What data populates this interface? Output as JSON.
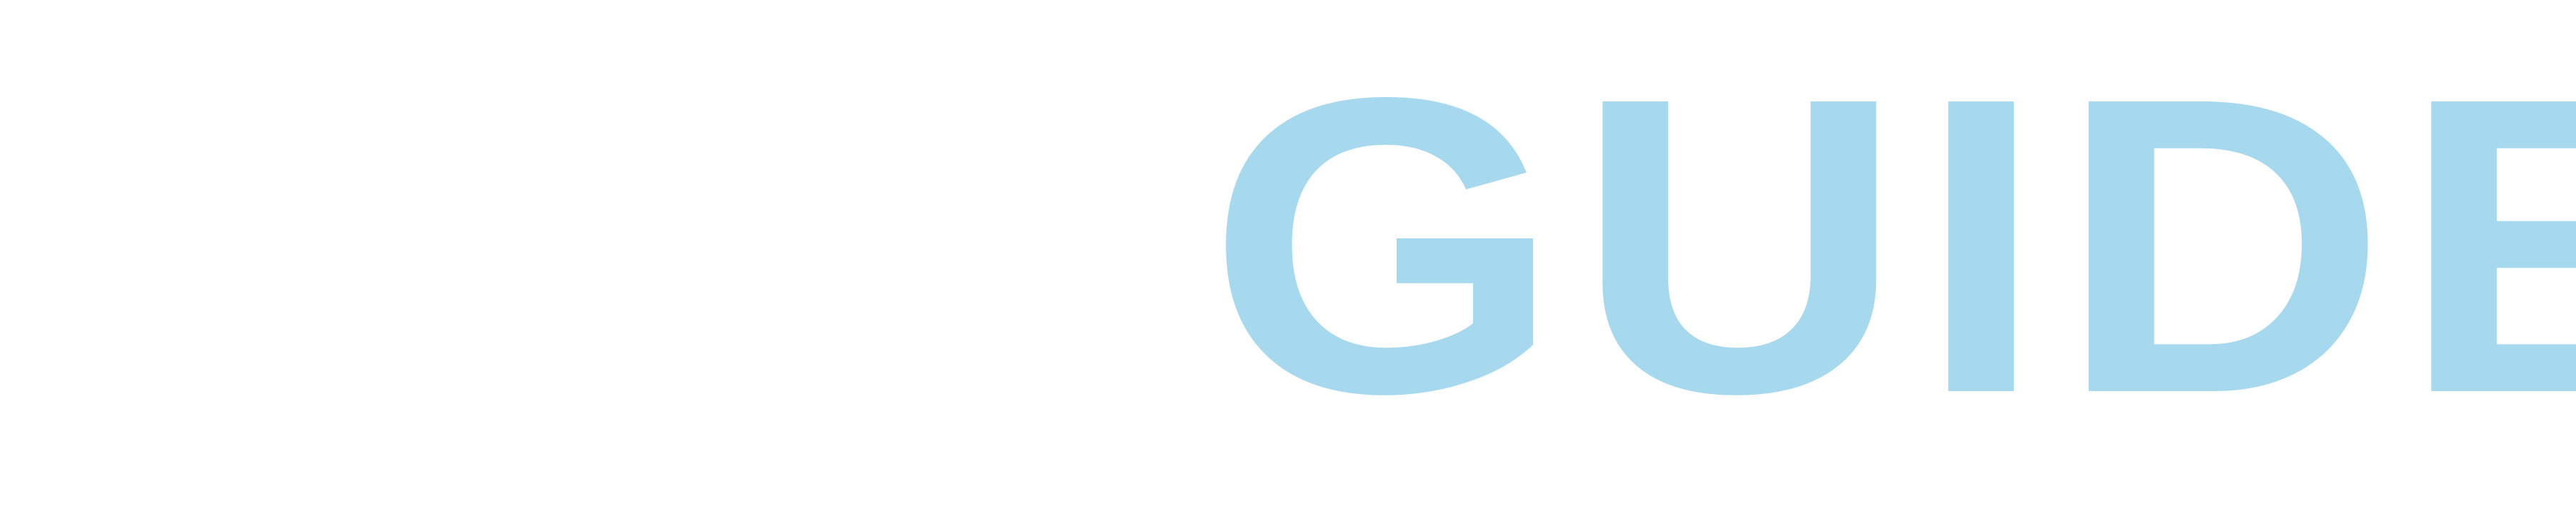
{
  "logo": {
    "word": "GUIDE",
    "color": "#a6d8ee"
  }
}
